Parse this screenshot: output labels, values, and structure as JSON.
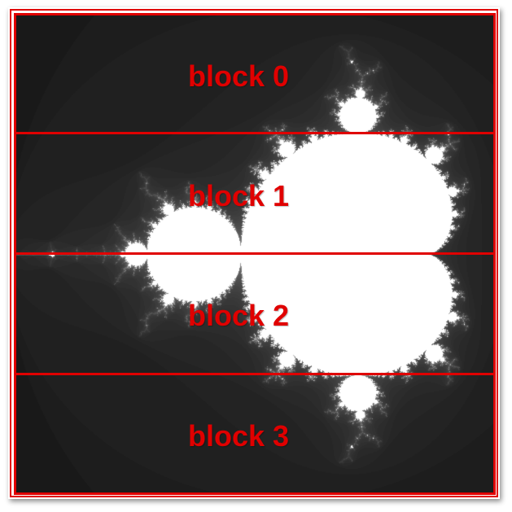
{
  "blocks": [
    {
      "label": "block 0"
    },
    {
      "label": "block 1"
    },
    {
      "label": "block 2"
    },
    {
      "label": "block 3"
    }
  ],
  "colors": {
    "accent": "#e00000",
    "background": "#151515",
    "fractal_fill": "#ffffff"
  }
}
